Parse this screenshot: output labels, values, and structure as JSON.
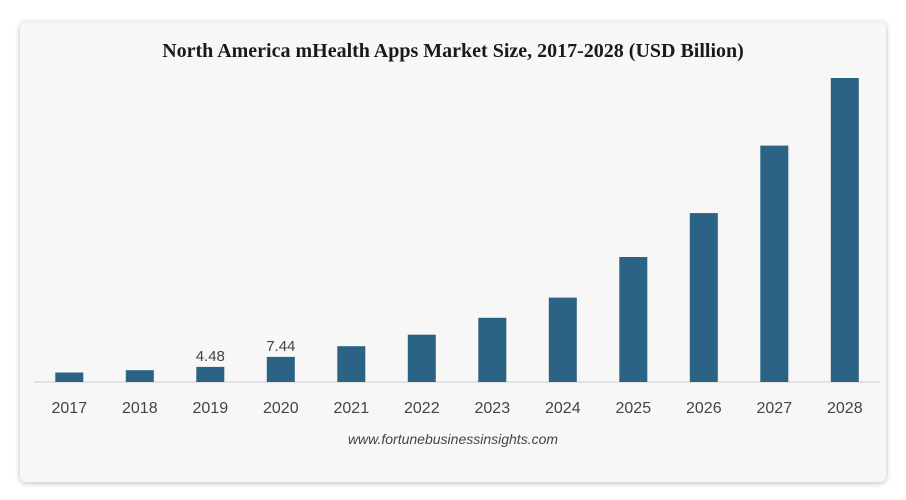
{
  "source_text": "www.fortunebusinessinsights.com",
  "chart_data": {
    "type": "bar",
    "title": "North America mHealth Apps Market Size, 2017-2028 (USD Billion)",
    "categories": [
      "2017",
      "2018",
      "2019",
      "2020",
      "2021",
      "2022",
      "2023",
      "2024",
      "2025",
      "2026",
      "2027",
      "2028"
    ],
    "values": [
      2.8,
      3.5,
      4.48,
      7.44,
      10.6,
      14.0,
      19.0,
      25.0,
      37.0,
      50.0,
      70.0,
      90.0
    ],
    "data_labels": {
      "2019": "4.48",
      "2020": "7.44"
    },
    "ylim": [
      0,
      90
    ],
    "grid": false,
    "legend": "none",
    "bar_color": "#2b6385",
    "axis_color": "#cccccc"
  }
}
